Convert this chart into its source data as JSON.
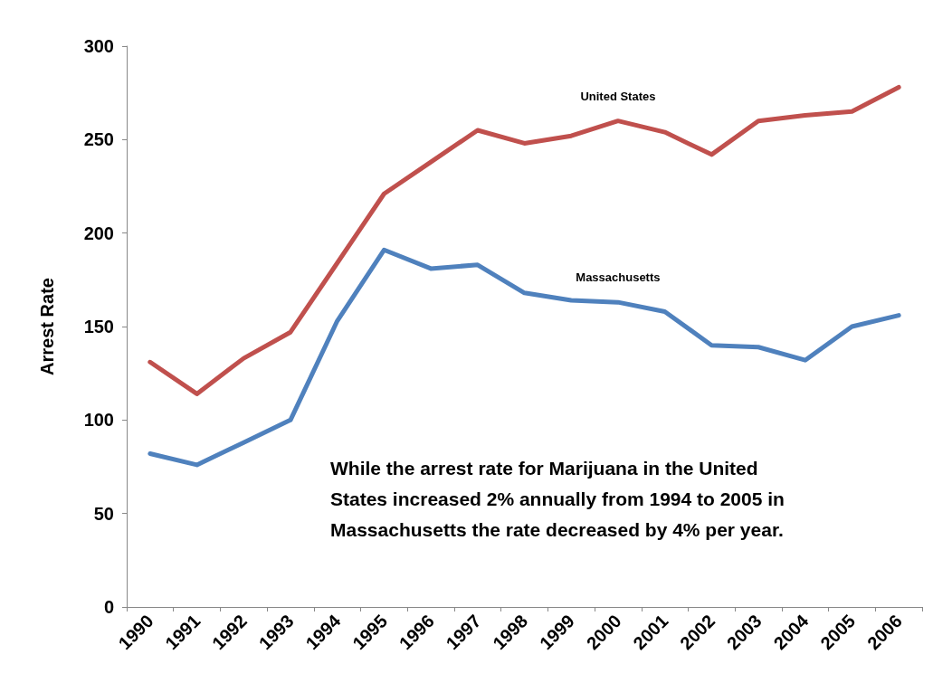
{
  "chart_data": {
    "type": "line",
    "ylabel": "Arrest Rate",
    "categories": [
      "1990",
      "1991",
      "1992",
      "1993",
      "1994",
      "1995",
      "1996",
      "1997",
      "1998",
      "1999",
      "2000",
      "2001",
      "2002",
      "2003",
      "2004",
      "2005",
      "2006"
    ],
    "series": [
      {
        "name": "United States",
        "color": "#c0504d",
        "values": [
          131,
          114,
          133,
          147,
          184,
          221,
          238,
          255,
          248,
          252,
          260,
          254,
          242,
          260,
          263,
          265,
          278
        ]
      },
      {
        "name": "Massachusetts",
        "color": "#4f81bd",
        "values": [
          82,
          76,
          88,
          100,
          153,
          191,
          181,
          183,
          168,
          164,
          163,
          158,
          140,
          139,
          132,
          150,
          156
        ]
      }
    ],
    "ylim": [
      0,
      300
    ],
    "yticks": [
      0,
      50,
      100,
      150,
      200,
      250,
      300
    ],
    "grid": false,
    "legend": false,
    "marker": "none",
    "line_style": "solid",
    "annotations": [
      "While the arrest rate for Marijuana in the United States increased 2% annually from 1994 to 2005 in Massachusetts the rate decreased by 4% per year."
    ]
  }
}
